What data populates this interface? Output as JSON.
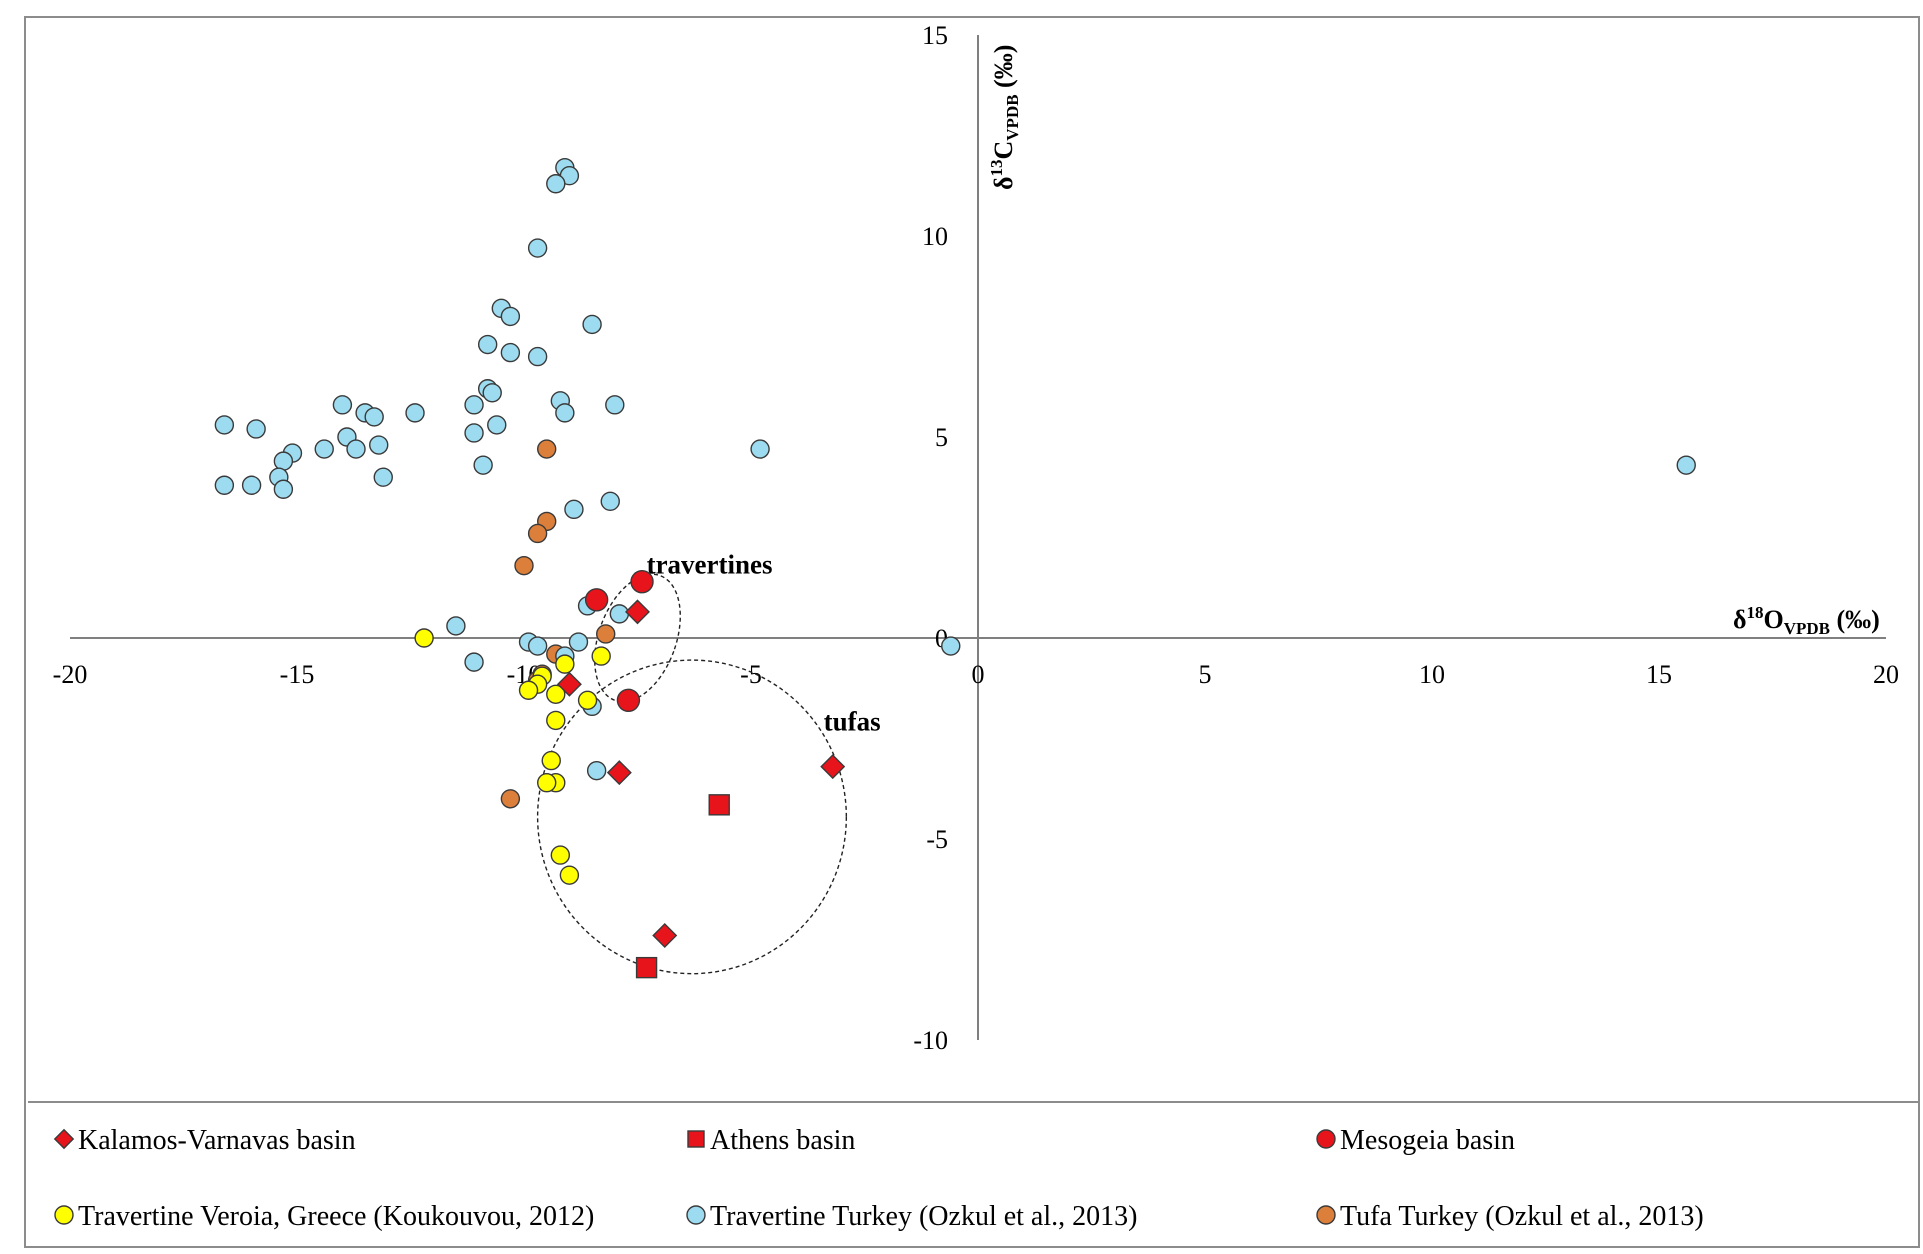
{
  "chart_data": {
    "type": "scatter",
    "title": "",
    "xlabel": "δ18O_VPDB (‰)",
    "ylabel": "δ13C_VPDB (‰)",
    "xlabel_parts": {
      "delta": "δ",
      "sup": "18",
      "element": "O",
      "sub": "VPDB",
      "unit": " (‰)"
    },
    "ylabel_parts": {
      "delta": "δ",
      "sup": "13",
      "element": "C",
      "sub": "VPDB",
      "unit": " (‰)"
    },
    "xlim": [
      -20,
      20
    ],
    "ylim": [
      -10,
      15
    ],
    "x_ticks": [
      "-20",
      "-15",
      "-10",
      "-5",
      "0",
      "5",
      "10",
      "15",
      "20"
    ],
    "y_ticks": [
      "15",
      "10",
      "5",
      "0",
      "-5",
      "-10"
    ],
    "x_tick_values": [
      -20,
      -15,
      -10,
      -5,
      0,
      5,
      10,
      15,
      20
    ],
    "y_tick_values": [
      15,
      10,
      5,
      0,
      -5,
      -10
    ],
    "grid": false,
    "legend_position": "bottom",
    "annotations": [
      {
        "text": "travertines",
        "x": -7.3,
        "y": 1.6
      },
      {
        "text": "tufas",
        "x": -3.4,
        "y": -2.3
      }
    ],
    "ellipses": [
      {
        "cx": -7.5,
        "cy": 0.0,
        "rx": 0.85,
        "ry": 1.65,
        "rotation_deg": 20
      },
      {
        "cx": -6.3,
        "cy": -4.45,
        "rx": 3.4,
        "ry": 3.9,
        "rotation_deg": 0
      }
    ],
    "series": [
      {
        "name": "Kalamos-Varnavas basin",
        "marker": "diamond",
        "color": "#e8141b",
        "points": [
          [
            -7.5,
            0.65
          ],
          [
            -9.0,
            -1.15
          ],
          [
            -7.9,
            -3.35
          ],
          [
            -6.9,
            -7.4
          ],
          [
            -3.2,
            -3.2
          ]
        ]
      },
      {
        "name": "Athens basin",
        "marker": "square",
        "color": "#e8141b",
        "points": [
          [
            -5.7,
            -4.15
          ],
          [
            -7.3,
            -8.2
          ]
        ]
      },
      {
        "name": "Mesogeia basin",
        "marker": "circle",
        "color": "#e8141b",
        "points": [
          [
            -7.4,
            1.4
          ],
          [
            -8.4,
            0.95
          ],
          [
            -7.7,
            -1.55
          ]
        ]
      },
      {
        "name": "Travertine Veroia, Greece (Koukouvou, 2012)",
        "marker": "circle",
        "color": "#ffff00",
        "points": [
          [
            -12.2,
            0.0
          ],
          [
            -9.1,
            -0.65
          ],
          [
            -9.6,
            -0.95
          ],
          [
            -9.7,
            -1.15
          ],
          [
            -9.9,
            -1.3
          ],
          [
            -9.3,
            -1.4
          ],
          [
            -8.6,
            -1.55
          ],
          [
            -9.3,
            -2.05
          ],
          [
            -8.3,
            -0.45
          ],
          [
            -9.4,
            -3.05
          ],
          [
            -9.3,
            -3.6
          ],
          [
            -9.5,
            -3.6
          ],
          [
            -9.2,
            -5.4
          ],
          [
            -9.0,
            -5.9
          ]
        ]
      },
      {
        "name": "Travertine Turkey (Ozkul et al., 2013)",
        "marker": "circle",
        "color": "#9ddcf0",
        "points": [
          [
            -9.1,
            11.7
          ],
          [
            -9.0,
            11.5
          ],
          [
            -9.3,
            11.3
          ],
          [
            -9.7,
            9.7
          ],
          [
            -10.5,
            8.2
          ],
          [
            -10.3,
            8.0
          ],
          [
            -8.5,
            7.8
          ],
          [
            -10.8,
            7.3
          ],
          [
            -10.3,
            7.1
          ],
          [
            -9.7,
            7.0
          ],
          [
            -10.8,
            6.2
          ],
          [
            -10.7,
            6.1
          ],
          [
            -9.2,
            5.9
          ],
          [
            -8.0,
            5.8
          ],
          [
            -11.1,
            5.8
          ],
          [
            -9.1,
            5.6
          ],
          [
            -14.0,
            5.8
          ],
          [
            -13.5,
            5.6
          ],
          [
            -13.3,
            5.5
          ],
          [
            -12.4,
            5.6
          ],
          [
            -16.6,
            5.3
          ],
          [
            -15.9,
            5.2
          ],
          [
            -10.6,
            5.3
          ],
          [
            -11.1,
            5.1
          ],
          [
            -13.9,
            5.0
          ],
          [
            -13.2,
            4.8
          ],
          [
            -14.4,
            4.7
          ],
          [
            -13.7,
            4.7
          ],
          [
            -15.1,
            4.6
          ],
          [
            -4.8,
            4.7
          ],
          [
            -15.3,
            4.4
          ],
          [
            -10.9,
            4.3
          ],
          [
            -15.4,
            4.0
          ],
          [
            -13.1,
            4.0
          ],
          [
            -16.6,
            3.8
          ],
          [
            -16.0,
            3.8
          ],
          [
            -15.3,
            3.7
          ],
          [
            -8.1,
            3.4
          ],
          [
            -8.9,
            3.2
          ],
          [
            -7.9,
            0.6
          ],
          [
            -8.6,
            0.8
          ],
          [
            -11.5,
            0.3
          ],
          [
            -9.9,
            -0.1
          ],
          [
            -9.7,
            -0.2
          ],
          [
            -8.8,
            -0.1
          ],
          [
            -0.6,
            -0.2
          ],
          [
            -9.1,
            -0.45
          ],
          [
            -11.1,
            -0.6
          ],
          [
            -8.5,
            -1.7
          ],
          [
            -8.4,
            -3.3
          ],
          [
            15.6,
            4.3
          ]
        ]
      },
      {
        "name": "Tufa Turkey (Ozkul et al., 2013)",
        "marker": "circle",
        "color": "#dc7f3a",
        "points": [
          [
            -9.5,
            4.7
          ],
          [
            -9.5,
            2.9
          ],
          [
            -9.7,
            2.6
          ],
          [
            -10.0,
            1.8
          ],
          [
            -8.2,
            0.1
          ],
          [
            -9.3,
            -0.4
          ],
          [
            -9.6,
            -0.9
          ],
          [
            -9.7,
            -1.05
          ],
          [
            -10.3,
            -4.0
          ]
        ]
      }
    ]
  }
}
